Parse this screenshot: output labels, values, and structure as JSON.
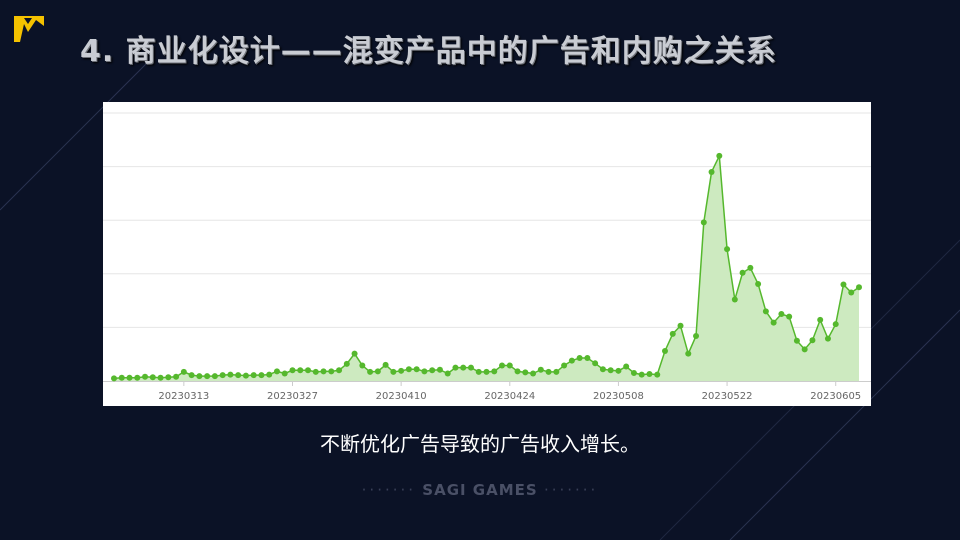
{
  "slide": {
    "title": "4. 商业化设计——混变产品中的广告和内购之关系",
    "caption": "不断优化广告导致的广告收入增长。",
    "footer": "SAGI GAMES"
  },
  "colors": {
    "background": "#0b1226",
    "line": "#55b82d",
    "area": "#cdeac0",
    "logo": "#f5c200"
  },
  "icons": {
    "logo": "sagi-logo-icon"
  },
  "chart_data": {
    "type": "area",
    "title": "",
    "xlabel": "",
    "ylabel": "",
    "y_tick_labels_shown": false,
    "grid": true,
    "ylim": [
      0,
      5
    ],
    "x_tick_labels": [
      "20230313",
      "20230327",
      "20230410",
      "20230424",
      "20230508",
      "20230522",
      "20230605"
    ],
    "series": [
      {
        "values": [
          0.05,
          0.06,
          0.06,
          0.06,
          0.08,
          0.07,
          0.06,
          0.07,
          0.08,
          0.17,
          0.11,
          0.09,
          0.09,
          0.09,
          0.11,
          0.12,
          0.11,
          0.1,
          0.11,
          0.11,
          0.12,
          0.18,
          0.14,
          0.2,
          0.2,
          0.2,
          0.17,
          0.18,
          0.18,
          0.2,
          0.32,
          0.51,
          0.29,
          0.17,
          0.18,
          0.3,
          0.17,
          0.19,
          0.22,
          0.22,
          0.18,
          0.2,
          0.21,
          0.14,
          0.25,
          0.25,
          0.25,
          0.17,
          0.17,
          0.18,
          0.29,
          0.29,
          0.18,
          0.16,
          0.14,
          0.21,
          0.17,
          0.17,
          0.29,
          0.38,
          0.43,
          0.43,
          0.33,
          0.22,
          0.2,
          0.19,
          0.27,
          0.15,
          0.12,
          0.13,
          0.12,
          0.56,
          0.88,
          1.03,
          0.51,
          0.84,
          2.96,
          3.9,
          4.2,
          2.46,
          1.52,
          2.02,
          2.11,
          1.81,
          1.3,
          1.09,
          1.25,
          1.2,
          0.75,
          0.59,
          0.76,
          1.14,
          0.79,
          1.06,
          1.8,
          1.65,
          1.75
        ]
      }
    ]
  }
}
